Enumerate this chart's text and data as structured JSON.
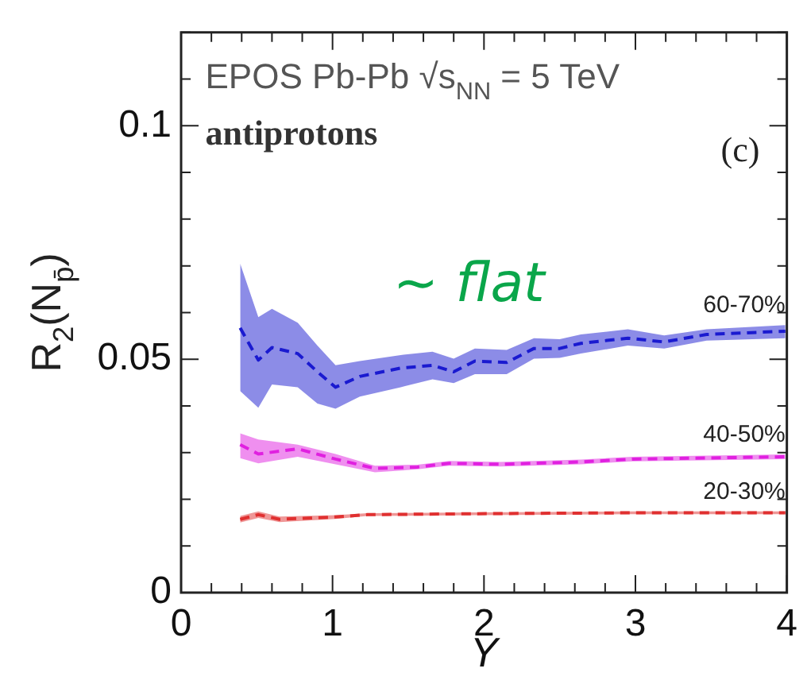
{
  "chart_data": {
    "type": "line",
    "xlabel": "Y",
    "ylabel": "R$_{2}$(N$_{p̄}$)",
    "annotations": [
      "EPOS Pb-Pb √s$_{NN}$ = 5 TeV",
      "antiprotons",
      "(c)",
      "~ flat"
    ],
    "xlim": [
      0,
      4
    ],
    "ylim": [
      0,
      0.12
    ],
    "xticks": [
      0,
      {
        "value": 0.2,
        "label": null
      },
      {
        "value": 0.4,
        "label": null
      },
      {
        "value": 0.6,
        "label": null
      },
      {
        "value": 0.8,
        "label": null
      },
      1,
      {
        "value": 1.2,
        "label": null
      },
      {
        "value": 1.4,
        "label": null
      },
      {
        "value": 1.6,
        "label": null
      },
      {
        "value": 1.8,
        "label": null
      },
      2,
      {
        "value": 2.2,
        "label": null
      },
      {
        "value": 2.4,
        "label": null
      },
      {
        "value": 2.6,
        "label": null
      },
      {
        "value": 2.8,
        "label": null
      },
      3,
      {
        "value": 3.2,
        "label": null
      },
      {
        "value": 3.4,
        "label": null
      },
      {
        "value": 3.6,
        "label": null
      },
      {
        "value": 3.8,
        "label": null
      },
      4
    ],
    "yticks": [
      0,
      {
        "value": 0.01,
        "label": null
      },
      {
        "value": 0.02,
        "label": null
      },
      {
        "value": 0.03,
        "label": null
      },
      {
        "value": 0.04,
        "label": null
      },
      0.05,
      {
        "value": 0.06,
        "label": null
      },
      {
        "value": 0.07,
        "label": null
      },
      {
        "value": 0.08,
        "label": null
      },
      {
        "value": 0.09,
        "label": null
      },
      0.1,
      {
        "value": 0.11,
        "label": null
      },
      {
        "value": 0.12,
        "label": null
      }
    ],
    "grid": false,
    "legend": false,
    "marker": "none",
    "line_style": "dashed",
    "series": [
      {
        "name": "60-70%",
        "color": "#1a1ad0",
        "x": [
          0.39,
          0.51,
          0.6,
          0.77,
          0.9,
          1.02,
          1.18,
          1.45,
          1.66,
          1.8,
          1.94,
          2.15,
          2.33,
          2.5,
          2.64,
          2.95,
          3.19,
          3.47,
          3.99
        ],
        "values": [
          0.0567,
          0.0498,
          0.0525,
          0.0512,
          0.0473,
          0.044,
          0.0463,
          0.0481,
          0.0487,
          0.0473,
          0.0496,
          0.0493,
          0.0523,
          0.0523,
          0.0534,
          0.0545,
          0.0537,
          0.0553,
          0.056
        ],
        "upper": [
          0.0705,
          0.059,
          0.0608,
          0.0578,
          0.0529,
          0.0487,
          0.0496,
          0.0509,
          0.0516,
          0.0501,
          0.0523,
          0.052,
          0.0545,
          0.0543,
          0.0553,
          0.0564,
          0.0551,
          0.0564,
          0.0573
        ],
        "lower": [
          0.0432,
          0.0396,
          0.0446,
          0.044,
          0.0405,
          0.0394,
          0.042,
          0.044,
          0.0457,
          0.0449,
          0.0468,
          0.0468,
          0.0501,
          0.0503,
          0.0512,
          0.0529,
          0.0523,
          0.054,
          0.0545
        ]
      },
      {
        "name": "40-50%",
        "color": "#e020e0",
        "x": [
          0.39,
          0.51,
          0.77,
          1.02,
          1.28,
          1.56,
          1.77,
          2.11,
          2.64,
          2.98,
          3.99
        ],
        "values": [
          0.0317,
          0.0297,
          0.0308,
          0.0286,
          0.0266,
          0.0269,
          0.0277,
          0.0275,
          0.028,
          0.0286,
          0.0291
        ],
        "upper": [
          0.0341,
          0.0328,
          0.0317,
          0.0297,
          0.0272,
          0.0274,
          0.0282,
          0.028,
          0.0285,
          0.0291,
          0.0296
        ],
        "lower": [
          0.0288,
          0.0277,
          0.0291,
          0.0275,
          0.0258,
          0.0264,
          0.0272,
          0.027,
          0.0275,
          0.0281,
          0.0286
        ]
      },
      {
        "name": "20-30%",
        "color": "#e03030",
        "x": [
          0.39,
          0.51,
          0.65,
          1.02,
          1.23,
          1.94,
          2.98,
          3.99
        ],
        "values": [
          0.0157,
          0.0167,
          0.0157,
          0.0162,
          0.0167,
          0.0169,
          0.0171,
          0.0171
        ],
        "upper": [
          0.0164,
          0.0174,
          0.0163,
          0.0166,
          0.017,
          0.0172,
          0.0174,
          0.0174
        ],
        "lower": [
          0.015,
          0.016,
          0.0151,
          0.0158,
          0.0164,
          0.0166,
          0.0168,
          0.0168
        ]
      }
    ]
  }
}
